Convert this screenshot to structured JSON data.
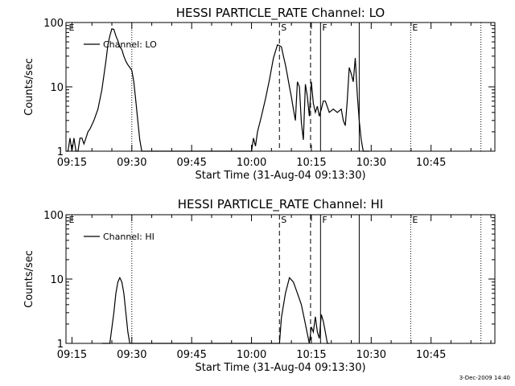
{
  "chart_data": [
    {
      "type": "line",
      "title": "HESSI PARTICLE_RATE Channel: LO",
      "xlabel": "Start Time (31-Aug-04 09:13:30)",
      "ylabel": "Counts/sec",
      "yscale": "log",
      "ylim": [
        1,
        100
      ],
      "xlim_minutes": [
        0,
        107.5
      ],
      "x_ticks": [
        {
          "t": 1.5,
          "label": "09:15"
        },
        {
          "t": 16.5,
          "label": "09:30"
        },
        {
          "t": 31.5,
          "label": "09:45"
        },
        {
          "t": 46.5,
          "label": "10:00"
        },
        {
          "t": 61.5,
          "label": "10:15"
        },
        {
          "t": 76.5,
          "label": "10:30"
        },
        {
          "t": 91.5,
          "label": "10:45"
        }
      ],
      "y_ticks": [
        {
          "v": 1,
          "label": "1"
        },
        {
          "v": 10,
          "label": "10"
        },
        {
          "v": 100,
          "label": "100"
        }
      ],
      "legend": "top-left",
      "series": [
        {
          "name": "Channel: LO",
          "x": [
            0,
            0.5,
            1,
            1.5,
            2,
            2.5,
            3,
            3.5,
            4,
            4.5,
            5,
            5.5,
            6,
            7,
            8,
            9,
            10,
            10.5,
            11,
            11.5,
            12,
            12.5,
            13,
            13.5,
            14,
            14.5,
            15,
            15.5,
            16,
            16.5,
            17,
            17.5,
            18,
            18.5,
            19,
            19.5,
            20,
            46.5,
            47,
            47.5,
            48,
            49,
            50,
            51,
            52,
            53,
            54,
            54.5,
            55,
            55.5,
            56,
            56.5,
            57,
            57.5,
            58,
            58.5,
            59,
            59.5,
            60,
            60.5,
            61,
            61.5,
            62,
            62.5,
            63,
            63.5,
            64,
            64.5,
            65,
            66,
            67,
            68,
            69,
            69.5,
            70,
            70.5,
            71,
            71.5,
            72,
            72.5,
            73,
            73.5,
            74,
            74.5,
            75,
            75.5,
            76
          ],
          "values": [
            1,
            1,
            1.6,
            1,
            1.6,
            1,
            1,
            1.6,
            1.6,
            1.3,
            1.6,
            2,
            2.2,
            3,
            4.5,
            9,
            25,
            45,
            62,
            80,
            78,
            62,
            52,
            42,
            38,
            30,
            25,
            22,
            20,
            18,
            12,
            6,
            3,
            1.5,
            1,
            1,
            1,
            1,
            1.6,
            1.2,
            2,
            3.5,
            6.5,
            13,
            28,
            45,
            42,
            30,
            22,
            15,
            10,
            7,
            4.5,
            3,
            12,
            10,
            2.8,
            1.5,
            11,
            7,
            3.5,
            12,
            5.5,
            4,
            5,
            3.5,
            4.5,
            6,
            6,
            4,
            4.5,
            4,
            4.5,
            3,
            2.5,
            6,
            20,
            16,
            12,
            28,
            8,
            3,
            1.5,
            1,
            1,
            1,
            1
          ]
        }
      ],
      "markers": [
        {
          "type": "dotted",
          "t": 16.5,
          "label": ""
        },
        {
          "type": "dashed",
          "t": 53.5,
          "label": "S"
        },
        {
          "type": "dashed",
          "t": 61.3,
          "label": ""
        },
        {
          "type": "solid",
          "t": 63.8,
          "label": "F"
        },
        {
          "type": "solid",
          "t": 73.5,
          "label": ""
        },
        {
          "type": "dotted",
          "t": 86.4,
          "label": "E"
        },
        {
          "type": "dotted",
          "t": 104,
          "label": ""
        },
        {
          "type": "none",
          "t": 0.3,
          "label": "E"
        }
      ]
    },
    {
      "type": "line",
      "title": "HESSI PARTICLE_RATE Channel: HI",
      "xlabel": "Start Time (31-Aug-04 09:13:30)",
      "ylabel": "Counts/sec",
      "yscale": "log",
      "ylim": [
        1,
        100
      ],
      "xlim_minutes": [
        0,
        107.5
      ],
      "x_ticks": [
        {
          "t": 1.5,
          "label": "09:15"
        },
        {
          "t": 16.5,
          "label": "09:30"
        },
        {
          "t": 31.5,
          "label": "09:45"
        },
        {
          "t": 46.5,
          "label": "10:00"
        },
        {
          "t": 61.5,
          "label": "10:15"
        },
        {
          "t": 76.5,
          "label": "10:30"
        },
        {
          "t": 91.5,
          "label": "10:45"
        }
      ],
      "y_ticks": [
        {
          "v": 1,
          "label": "1"
        },
        {
          "v": 10,
          "label": "10"
        },
        {
          "v": 100,
          "label": "100"
        }
      ],
      "legend": "top-left",
      "series": [
        {
          "name": "Channel: HI",
          "x": [
            9,
            10,
            11,
            12,
            12.5,
            13,
            13.5,
            14,
            14.5,
            15,
            15.5,
            16,
            53.5,
            54,
            55,
            56,
            57,
            58,
            59,
            60,
            61,
            61.5,
            62,
            62.5,
            63,
            63.5,
            64,
            64.5,
            65,
            65.5,
            66
          ],
          "values": [
            1,
            1,
            1,
            3,
            6,
            9,
            10.5,
            9,
            6,
            3,
            1.5,
            1,
            1,
            2.5,
            6,
            10.5,
            9,
            6,
            4,
            2,
            1,
            1.8,
            1.5,
            2.6,
            1.5,
            1.2,
            2.8,
            2.2,
            1.5,
            1,
            1
          ]
        }
      ],
      "markers": [
        {
          "type": "dotted",
          "t": 16.5,
          "label": ""
        },
        {
          "type": "dashed",
          "t": 53.5,
          "label": "S"
        },
        {
          "type": "dashed",
          "t": 61.3,
          "label": ""
        },
        {
          "type": "solid",
          "t": 63.8,
          "label": "F"
        },
        {
          "type": "solid",
          "t": 73.5,
          "label": ""
        },
        {
          "type": "dotted",
          "t": 86.4,
          "label": "E"
        },
        {
          "type": "dotted",
          "t": 104,
          "label": ""
        },
        {
          "type": "none",
          "t": 0.3,
          "label": "E"
        }
      ]
    }
  ],
  "footer": "3-Dec-2009 14:40"
}
